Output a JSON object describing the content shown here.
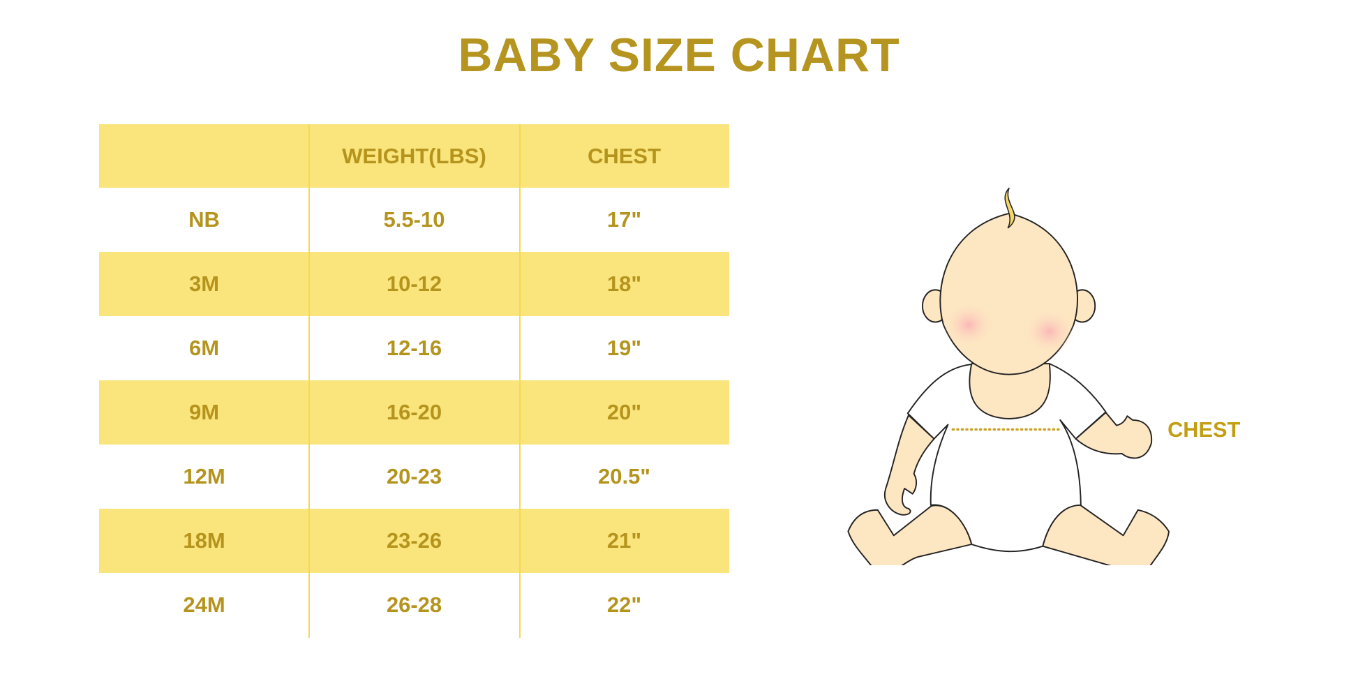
{
  "title": "BABY SIZE CHART",
  "table": {
    "headers": [
      "",
      "WEIGHT(LBS)",
      "CHEST"
    ],
    "rows": [
      [
        "NB",
        "5.5-10",
        "17\""
      ],
      [
        "3M",
        "10-12",
        "18\""
      ],
      [
        "6M",
        "12-16",
        "19\""
      ],
      [
        "9M",
        "16-20",
        "20\""
      ],
      [
        "12M",
        "20-23",
        "20.5\""
      ],
      [
        "18M",
        "23-26",
        "21\""
      ],
      [
        "24M",
        "26-28",
        "22\""
      ]
    ]
  },
  "illustration": {
    "measure_label": "CHEST"
  },
  "colors": {
    "text": "#b5941e",
    "band": "#fae47c",
    "divider": "#f7d950",
    "skin": "#fde6c2"
  }
}
